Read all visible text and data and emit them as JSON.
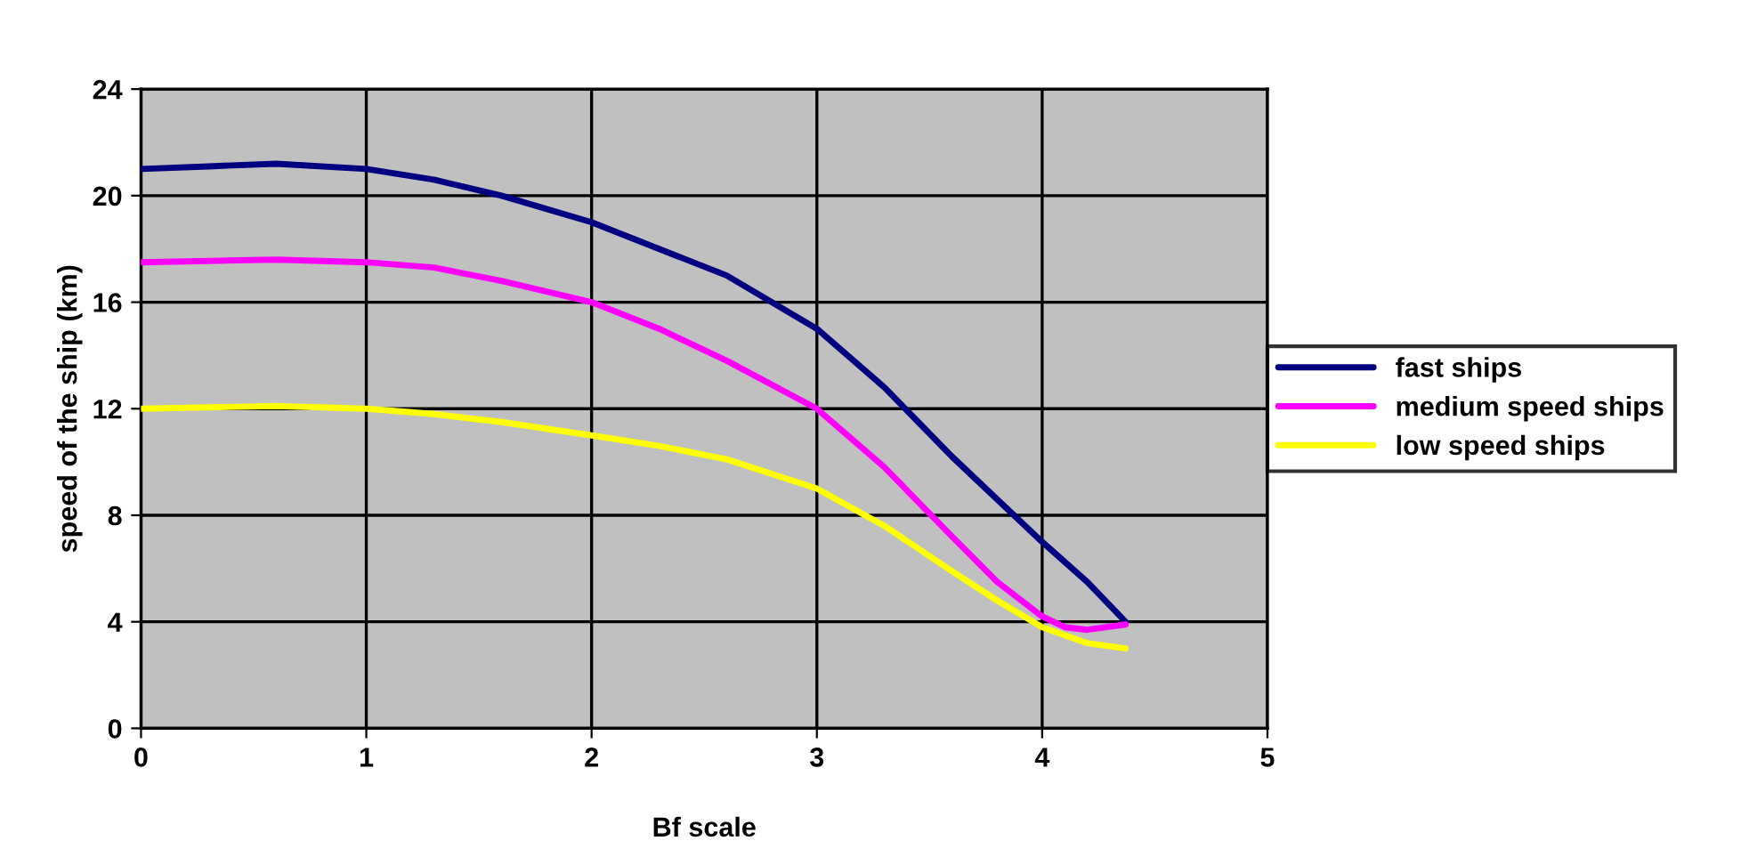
{
  "chart_data": {
    "type": "line",
    "xlabel": "Bf scale",
    "ylabel": "speed of the ship (km)",
    "xlim": [
      0,
      5
    ],
    "ylim": [
      0,
      24
    ],
    "xticks": [
      0,
      1,
      2,
      3,
      4,
      5
    ],
    "yticks": [
      0,
      4,
      8,
      12,
      16,
      20,
      24
    ],
    "grid": true,
    "legend": "right",
    "marker": "none",
    "line_style": "solid",
    "series": [
      {
        "name": "fast ships",
        "color": "#000080",
        "x": [
          0,
          0.3,
          0.6,
          1,
          1.3,
          1.6,
          2,
          2.3,
          2.6,
          3,
          3.3,
          3.6,
          4,
          4.2,
          4.37
        ],
        "values": [
          21,
          21.1,
          21.2,
          21,
          20.6,
          20,
          19,
          18,
          17,
          15,
          12.8,
          10.2,
          7,
          5.5,
          4
        ]
      },
      {
        "name": "medium speed ships",
        "color": "#ff00ff",
        "x": [
          0,
          0.3,
          0.6,
          1,
          1.3,
          1.6,
          2,
          2.3,
          2.6,
          3,
          3.3,
          3.6,
          3.8,
          4,
          4.1,
          4.2,
          4.37
        ],
        "values": [
          17.5,
          17.55,
          17.6,
          17.5,
          17.3,
          16.8,
          16,
          15,
          13.8,
          12,
          9.8,
          7.2,
          5.5,
          4.2,
          3.8,
          3.7,
          3.9
        ]
      },
      {
        "name": "low speed ships",
        "color": "#ffff00",
        "x": [
          0,
          0.3,
          0.6,
          1,
          1.3,
          1.6,
          2,
          2.3,
          2.6,
          3,
          3.3,
          3.6,
          3.8,
          4,
          4.2,
          4.37
        ],
        "values": [
          12,
          12.05,
          12.1,
          12,
          11.8,
          11.5,
          11,
          10.6,
          10.1,
          9,
          7.6,
          5.9,
          4.8,
          3.8,
          3.2,
          3
        ]
      }
    ]
  }
}
